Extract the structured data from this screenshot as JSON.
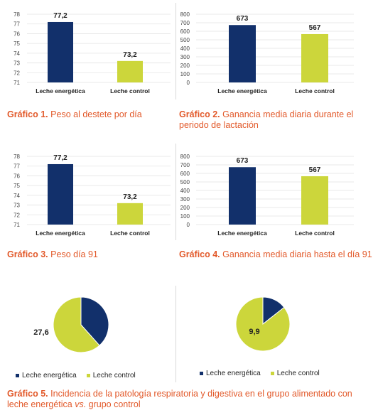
{
  "colors": {
    "navy": "#12306b",
    "lime": "#ccd63b",
    "caption": "#e2592a",
    "grid": "#e3e3e3"
  },
  "captions": {
    "g1": {
      "num": "Gráfico 1.",
      "text": "Peso al destete por día"
    },
    "g2": {
      "num": "Gráfico 2.",
      "text": "Ganancia media diaria durante el periodo de lactación"
    },
    "g3": {
      "num": "Gráfico 3.",
      "text": "Peso día 91"
    },
    "g4": {
      "num": "Gráfico 4.",
      "text": "Ganancia media diaria hasta el día 91"
    },
    "g5": {
      "num": "Gráfico 5.",
      "text_a": "Incidencia de la patología respiratoria y digestiva en el grupo alimentado con leche energética ",
      "text_vs": "vs.",
      "text_b": " grupo control"
    }
  },
  "legend": {
    "a": "Leche energética",
    "b": "Leche control"
  },
  "chart_data": [
    {
      "id": "c1",
      "type": "bar",
      "categories": [
        "Leche energética",
        "Leche control"
      ],
      "values": [
        77.2,
        73.2
      ],
      "labels": [
        "77,2",
        "73,2"
      ],
      "ylim": [
        71,
        78
      ],
      "yticks": [
        71,
        72,
        73,
        74,
        75,
        76,
        77,
        78
      ],
      "grid": true
    },
    {
      "id": "c2",
      "type": "bar",
      "categories": [
        "Leche energética",
        "Leche control"
      ],
      "values": [
        673,
        567
      ],
      "labels": [
        "673",
        "567"
      ],
      "ylim": [
        0,
        800
      ],
      "yticks": [
        0,
        100,
        200,
        300,
        400,
        500,
        600,
        700,
        800
      ],
      "grid": true
    },
    {
      "id": "c3",
      "type": "bar",
      "categories": [
        "Leche energética",
        "Leche control"
      ],
      "values": [
        77.2,
        73.2
      ],
      "labels": [
        "77,2",
        "73,2"
      ],
      "ylim": [
        71,
        78
      ],
      "yticks": [
        71,
        72,
        73,
        74,
        75,
        76,
        77,
        78
      ],
      "grid": true
    },
    {
      "id": "c4",
      "type": "bar",
      "categories": [
        "Leche energética",
        "Leche control"
      ],
      "values": [
        673,
        567
      ],
      "labels": [
        "673",
        "567"
      ],
      "ylim": [
        0,
        800
      ],
      "yticks": [
        0,
        100,
        200,
        300,
        400,
        500,
        600,
        700,
        800
      ],
      "grid": true
    },
    {
      "id": "c5",
      "type": "pie",
      "categories": [
        "Leche energética",
        "Leche control"
      ],
      "values": [
        38.4,
        61.6
      ],
      "labels": [
        "",
        "27,6"
      ]
    },
    {
      "id": "c6",
      "type": "pie",
      "categories": [
        "Leche energética",
        "Leche control"
      ],
      "values": [
        14.4,
        85.6
      ],
      "labels": [
        "",
        "9,9"
      ]
    }
  ]
}
